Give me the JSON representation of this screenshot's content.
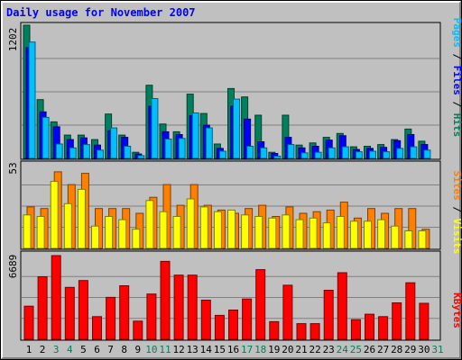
{
  "title": "Daily usage for November 2007",
  "colors": {
    "hits": "#00805c",
    "files": "#0000ff",
    "pages": "#00c0ff",
    "visits": "#ffff00",
    "sites": "#ff8000",
    "kbytes": "#ff0000",
    "weekday_label": "#000000",
    "weekend_label": "#00805c",
    "panel_bg": "#c0c0c0",
    "grid": "#808080"
  },
  "chart_data": [
    {
      "type": "bar",
      "panel": "hits-files-pages",
      "x": [
        1,
        2,
        3,
        4,
        5,
        6,
        7,
        8,
        9,
        10,
        11,
        12,
        13,
        14,
        15,
        16,
        17,
        18,
        19,
        20,
        21,
        22,
        23,
        24,
        25,
        26,
        27,
        28,
        29,
        30
      ],
      "ymax_label": "1202",
      "ylim": [
        0,
        1202
      ],
      "right_labels": [
        "Pages",
        "Files",
        "Hits"
      ],
      "separator": " / ",
      "series": [
        {
          "name": "Hits",
          "values": [
            1202,
            530,
            330,
            210,
            210,
            170,
            400,
            210,
            55,
            660,
            310,
            240,
            580,
            405,
            130,
            630,
            555,
            390,
            55,
            390,
            120,
            140,
            190,
            225,
            105,
            110,
            125,
            170,
            265,
            155
          ]
        },
        {
          "name": "Files",
          "values": [
            1000,
            420,
            285,
            170,
            185,
            120,
            250,
            190,
            40,
            470,
            240,
            215,
            385,
            300,
            90,
            470,
            355,
            150,
            45,
            190,
            95,
            110,
            165,
            205,
            80,
            90,
            100,
            160,
            215,
            125
          ]
        },
        {
          "name": "Pages",
          "values": [
            1050,
            370,
            130,
            95,
            125,
            75,
            275,
            110,
            25,
            540,
            175,
            180,
            410,
            275,
            65,
            535,
            110,
            95,
            20,
            125,
            50,
            55,
            95,
            105,
            60,
            65,
            60,
            90,
            105,
            75
          ]
        }
      ]
    },
    {
      "type": "bar",
      "panel": "visits-sites",
      "x": [
        1,
        2,
        3,
        4,
        5,
        6,
        7,
        8,
        9,
        10,
        11,
        12,
        13,
        14,
        15,
        16,
        17,
        18,
        19,
        20,
        21,
        22,
        23,
        24,
        25,
        26,
        27,
        28,
        29,
        30
      ],
      "ymax_label": "53",
      "ylim": [
        0,
        53
      ],
      "right_labels": [
        "Sites",
        "Visits"
      ],
      "separator": " / ",
      "series": [
        {
          "name": "Visits",
          "values": [
            21,
            20,
            42,
            28,
            37,
            14,
            20,
            18,
            12,
            30,
            23,
            20,
            31,
            26,
            23,
            24,
            21,
            20,
            19,
            21,
            18,
            19,
            16,
            20,
            17,
            17,
            18,
            14,
            11,
            11
          ]
        },
        {
          "name": "Sites",
          "values": [
            26,
            25,
            48,
            40,
            47,
            25,
            25,
            25,
            22,
            32,
            40,
            27,
            40,
            27,
            24,
            22,
            25,
            27,
            20,
            26,
            22,
            23,
            24,
            29,
            19,
            25,
            22,
            25,
            25,
            12
          ]
        }
      ]
    },
    {
      "type": "bar",
      "panel": "kbytes",
      "x": [
        1,
        2,
        3,
        4,
        5,
        6,
        7,
        8,
        9,
        10,
        11,
        12,
        13,
        14,
        15,
        16,
        17,
        18,
        19,
        20,
        21,
        22,
        23,
        24,
        25,
        26,
        27,
        28,
        29,
        30
      ],
      "ymax_label": "6689",
      "ylim": [
        0,
        6689
      ],
      "right_labels": [
        "KBytes"
      ],
      "series": [
        {
          "name": "KBytes",
          "values": [
            2650,
            5000,
            6689,
            4150,
            4700,
            1810,
            3350,
            4280,
            1450,
            3620,
            6230,
            5130,
            5130,
            3130,
            1910,
            2340,
            3220,
            5570,
            1410,
            4320,
            1250,
            1250,
            3920,
            5320,
            1570,
            2010,
            1810,
            2910,
            4520,
            2880
          ]
        }
      ]
    }
  ],
  "x_axis": {
    "labels": [
      1,
      2,
      3,
      4,
      5,
      6,
      7,
      8,
      9,
      10,
      11,
      12,
      13,
      14,
      15,
      16,
      17,
      18,
      19,
      20,
      21,
      22,
      23,
      24,
      25,
      26,
      27,
      28,
      29,
      30,
      31
    ],
    "weekend_days": [
      3,
      4,
      10,
      11,
      17,
      18,
      24,
      25,
      31
    ]
  }
}
